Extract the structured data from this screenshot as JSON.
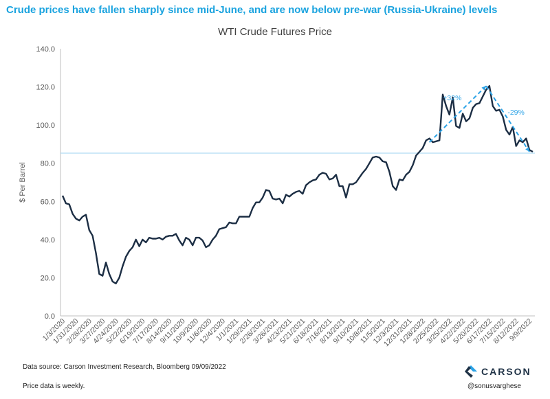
{
  "headline": "Crude prices have fallen sharply since mid-June, and are now below pre-war (Russia-Ukraine) levels",
  "footer": {
    "source": "Data source: Carson Investment Research, Bloomberg   09/09/2022",
    "note": "Price data is weekly.",
    "brand": "CARSON",
    "handle": "@sonusvarghese"
  },
  "colors": {
    "headline": "#1aa3df",
    "line": "#1c2e44",
    "annotation": "#2aa2e6",
    "refline": "#9dd3f2"
  },
  "chart_data": {
    "type": "line",
    "title": "WTI Crude Futures Price",
    "xlabel": "",
    "ylabel": "$ Per Barrel",
    "ylim": [
      0,
      140
    ],
    "yticks": [
      "0.0",
      "20.0",
      "40.0",
      "60.0",
      "80.0",
      "100.0",
      "120.0",
      "140.0"
    ],
    "grid": false,
    "xtick_labels": [
      "1/3/2020",
      "1/31/2020",
      "2/28/2020",
      "3/27/2020",
      "4/24/2020",
      "5/22/2020",
      "6/19/2020",
      "7/17/2020",
      "8/14/2020",
      "9/11/2020",
      "10/9/2020",
      "11/6/2020",
      "12/4/2020",
      "1/1/2021",
      "1/29/2021",
      "2/26/2021",
      "3/26/2021",
      "4/23/2021",
      "5/21/2021",
      "6/18/2021",
      "7/16/2021",
      "8/13/2021",
      "9/10/2021",
      "10/8/2021",
      "11/5/2021",
      "12/3/2021",
      "12/31/2021",
      "1/28/2022",
      "2/25/2022",
      "3/25/2022",
      "4/22/2022",
      "5/20/2022",
      "6/17/2022",
      "7/15/2022",
      "8/12/2022",
      "9/9/2022"
    ],
    "series": [
      {
        "values": [
          63,
          59,
          58.5,
          53.5,
          51,
          50,
          52,
          53,
          45,
          42,
          33,
          22,
          21,
          28,
          22,
          18,
          17,
          20,
          26,
          31,
          34,
          36,
          40,
          36.5,
          40,
          38.5,
          41,
          40.5,
          40.5,
          41,
          40,
          41.5,
          42,
          42,
          43,
          39.5,
          37,
          41,
          40,
          37,
          41,
          41,
          39.5,
          36,
          37,
          40,
          42,
          45.5,
          46,
          46.5,
          49,
          48.5,
          48.5,
          52,
          52,
          52,
          52,
          56.5,
          59.5,
          59.5,
          62,
          66,
          65.5,
          61.5,
          61,
          61.5,
          59,
          63.5,
          62.5,
          64,
          65,
          65.5,
          64,
          68.5,
          70,
          71,
          71.5,
          74,
          75,
          74.5,
          71.5,
          72,
          74,
          68,
          68,
          62,
          69,
          69,
          70,
          72.5,
          75,
          77,
          80,
          83,
          83.5,
          83,
          81,
          80.5,
          75.5,
          68,
          66,
          71.5,
          71,
          74,
          75.5,
          79,
          84,
          86,
          88,
          92,
          93,
          91,
          91.5,
          92,
          116,
          110,
          105.5,
          114.5,
          99.5,
          98.5,
          106,
          102,
          103.5,
          109,
          111,
          111.5,
          115,
          118.5,
          120.5,
          110,
          107.5,
          108,
          104.5,
          97.5,
          95,
          99,
          89,
          92,
          91,
          93,
          87,
          86
        ]
      }
    ],
    "reference_line": 85.3,
    "annotations": [
      {
        "text": "+32%",
        "from": {
          "x_week": 110,
          "y": 91
        },
        "to": {
          "x_week": 127,
          "y": 120.5
        }
      },
      {
        "text": "-29%",
        "from": {
          "x_week": 127,
          "y": 120.5
        },
        "to": {
          "x_week": 140,
          "y": 86
        }
      }
    ]
  }
}
